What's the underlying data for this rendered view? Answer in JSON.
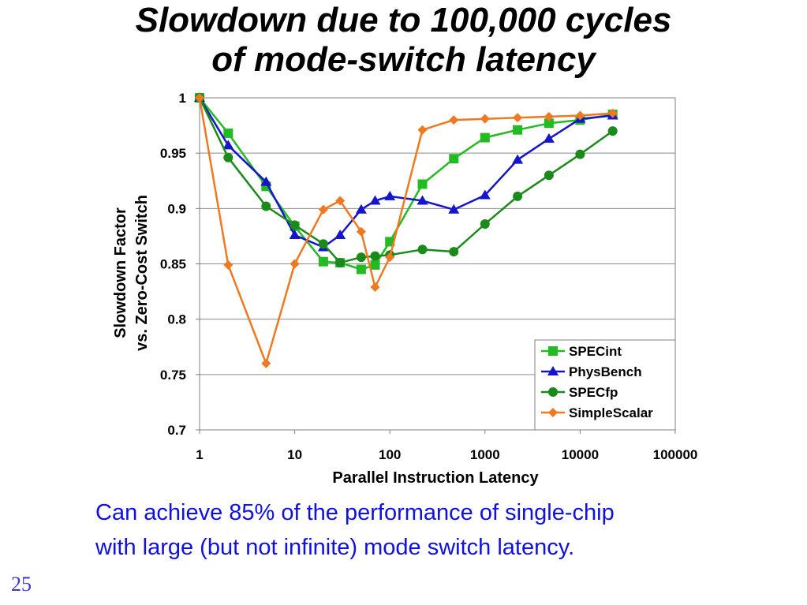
{
  "slide": {
    "title_lines": [
      "Slowdown due to 100,000 cycles",
      "of mode-switch latency"
    ],
    "caption_lines": [
      "Can achieve 85% of the performance of single-chip",
      "with large (but not infinite) mode switch latency."
    ],
    "page_number": "25",
    "caption_color": "#1010e0"
  },
  "chart_data": {
    "type": "line",
    "xlabel": "Parallel Instruction Latency",
    "ylabel_lines": [
      "Slowdown Factor",
      "vs. Zero-Cost Switch"
    ],
    "x_scale": "log",
    "xlim": [
      1,
      100000
    ],
    "ylim": [
      0.7,
      1.0
    ],
    "x_ticks": [
      1,
      10,
      100,
      1000,
      10000,
      100000
    ],
    "x_tick_labels": [
      "1",
      "10",
      "100",
      "1000",
      "10000",
      "100000"
    ],
    "y_ticks": [
      0.7,
      0.75,
      0.8,
      0.85,
      0.9,
      0.95,
      1.0
    ],
    "y_tick_labels": [
      "0.7",
      "0.75",
      "0.8",
      "0.85",
      "0.9",
      "0.95",
      "1"
    ],
    "grid": "horizontal",
    "legend_position": "bottom-right",
    "series": [
      {
        "name": "SPECint",
        "color": "#22bb22",
        "marker": "square",
        "x": [
          1,
          2,
          5,
          10,
          20,
          30,
          50,
          70,
          100,
          220,
          470,
          1000,
          2200,
          4700,
          10000,
          22000
        ],
        "y": [
          1.0,
          0.968,
          0.92,
          0.884,
          0.852,
          0.851,
          0.845,
          0.849,
          0.87,
          0.922,
          0.945,
          0.964,
          0.971,
          0.977,
          0.98,
          0.985
        ]
      },
      {
        "name": "PhysBench",
        "color": "#1515cc",
        "marker": "triangle",
        "x": [
          1,
          2,
          5,
          10,
          20,
          30,
          50,
          70,
          100,
          220,
          470,
          1000,
          2200,
          4700,
          10000,
          22000
        ],
        "y": [
          1.0,
          0.957,
          0.924,
          0.876,
          0.865,
          0.876,
          0.899,
          0.907,
          0.911,
          0.907,
          0.899,
          0.912,
          0.944,
          0.963,
          0.981,
          0.984
        ]
      },
      {
        "name": "SPECfp",
        "color": "#1a8a1a",
        "marker": "circle",
        "x": [
          1,
          2,
          5,
          10,
          20,
          30,
          50,
          70,
          100,
          220,
          470,
          1000,
          2200,
          4700,
          10000,
          22000
        ],
        "y": [
          1.0,
          0.946,
          0.902,
          0.885,
          0.868,
          0.851,
          0.856,
          0.857,
          0.858,
          0.863,
          0.861,
          0.886,
          0.911,
          0.93,
          0.949,
          0.97
        ]
      },
      {
        "name": "SimpleScalar",
        "color": "#f07820",
        "marker": "diamond",
        "x": [
          1,
          2,
          5,
          10,
          20,
          30,
          50,
          70,
          100,
          220,
          470,
          1000,
          2200,
          4700,
          10000,
          22000
        ],
        "y": [
          1.0,
          0.849,
          0.76,
          0.85,
          0.899,
          0.907,
          0.879,
          0.829,
          0.856,
          0.971,
          0.98,
          0.981,
          0.982,
          0.983,
          0.984,
          0.986
        ]
      }
    ]
  }
}
